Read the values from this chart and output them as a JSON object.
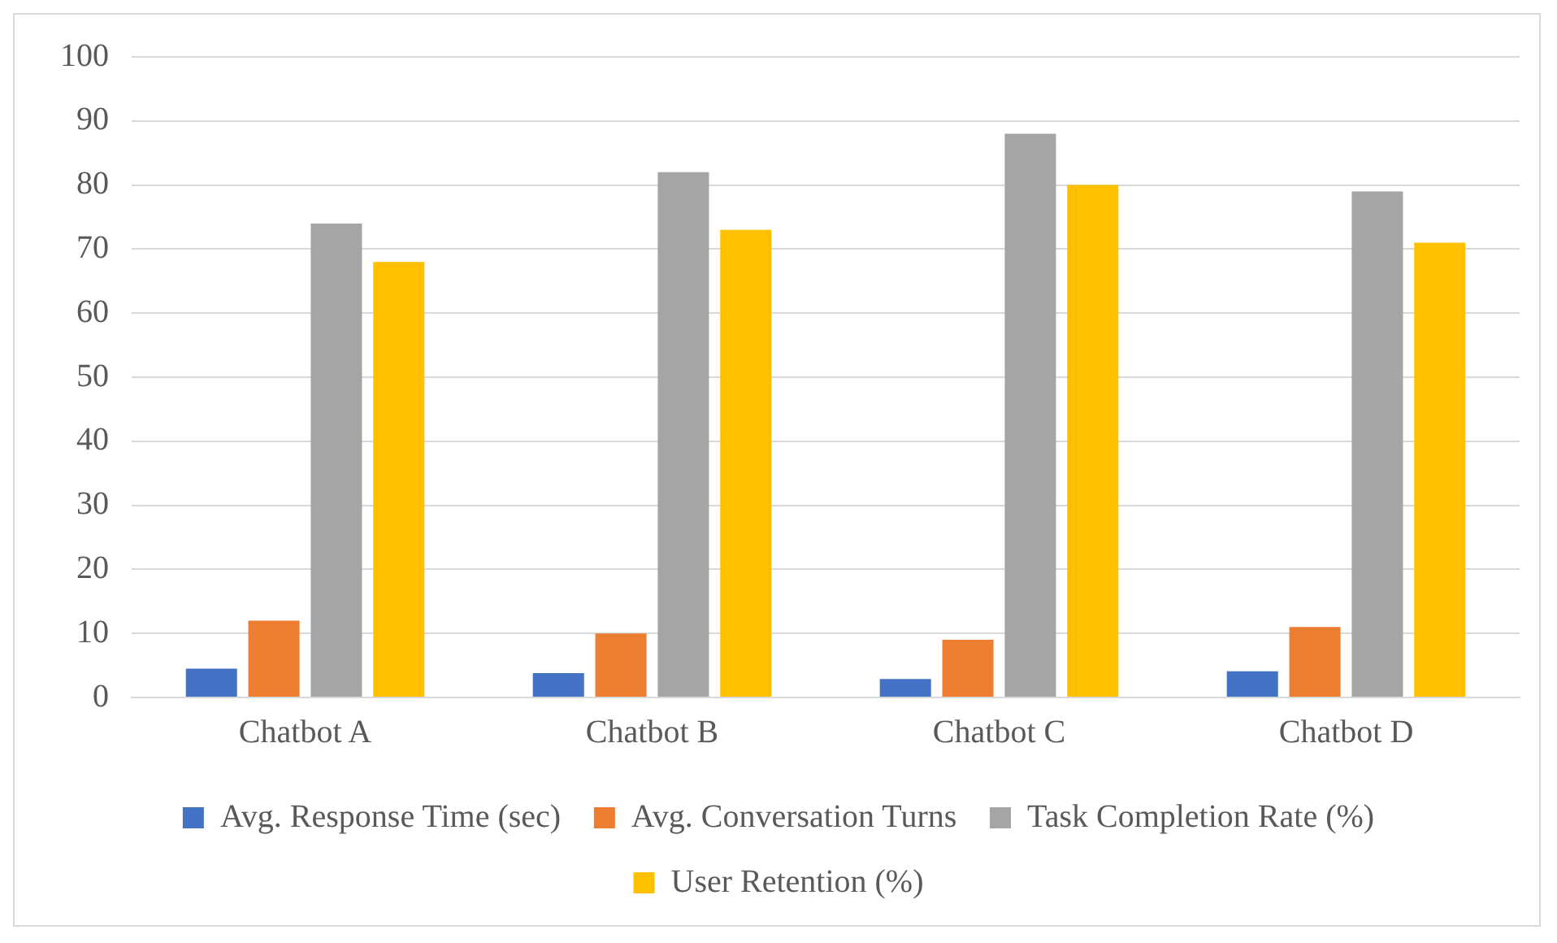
{
  "chart_data": {
    "type": "bar",
    "categories": [
      "Chatbot A",
      "Chatbot B",
      "Chatbot C",
      "Chatbot D"
    ],
    "series": [
      {
        "name": "Avg. Response Time (sec)",
        "color": "#4472c4",
        "values": [
          4.5,
          3.8,
          2.9,
          4.1
        ]
      },
      {
        "name": "Avg. Conversation Turns",
        "color": "#ed7d31",
        "values": [
          12,
          10,
          9,
          11
        ]
      },
      {
        "name": "Task Completion Rate (%)",
        "color": "#a5a5a5",
        "values": [
          74,
          82,
          88,
          79
        ]
      },
      {
        "name": "User Retention (%)",
        "color": "#ffc000",
        "values": [
          68,
          73,
          80,
          71
        ]
      }
    ],
    "ylim": [
      0,
      100
    ],
    "yticks": [
      0,
      10,
      20,
      30,
      40,
      50,
      60,
      70,
      80,
      90,
      100
    ],
    "grid": "y",
    "legend": "bottom"
  }
}
